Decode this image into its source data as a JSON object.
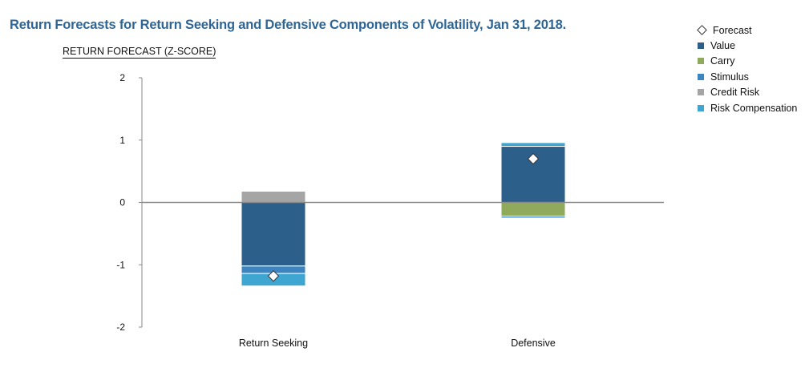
{
  "chart_data": {
    "type": "bar",
    "stacked": true,
    "title": "Return Forecasts for Return Seeking and Defensive Components of Volatility, Jan 31, 2018.",
    "ylabel": "RETURN FORECAST (Z-SCORE)",
    "xlabel": "",
    "categories": [
      "Return Seeking",
      "Defensive"
    ],
    "ylim": [
      -2,
      2
    ],
    "yticks": [
      2,
      1,
      0,
      -1,
      -2
    ],
    "series": [
      {
        "name": "Value",
        "color": "#2c5f8a",
        "values": [
          -1.02,
          0.9
        ]
      },
      {
        "name": "Carry",
        "color": "#8faa5a",
        "values": [
          0.0,
          -0.22
        ]
      },
      {
        "name": "Stimulus",
        "color": "#3d85c0",
        "values": [
          -0.12,
          -0.03
        ]
      },
      {
        "name": "Credit Risk",
        "color": "#a5a5a5",
        "values": [
          0.18,
          0.0
        ]
      },
      {
        "name": "Risk Compensation",
        "color": "#3ea6d1",
        "values": [
          -0.2,
          0.06
        ]
      }
    ],
    "forecast": {
      "name": "Forecast",
      "values": [
        -1.18,
        0.7
      ]
    },
    "legend_position": "top-right"
  }
}
